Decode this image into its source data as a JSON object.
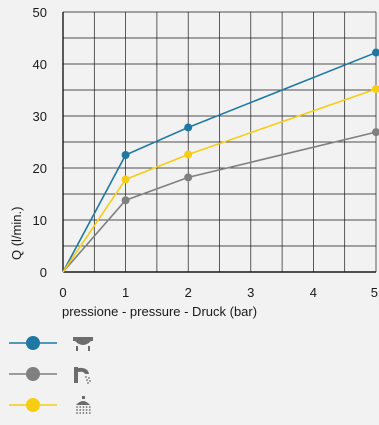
{
  "chart_data": {
    "type": "line",
    "title": "",
    "xlabel": "pressione - pressure - Druck (bar)",
    "ylabel": "Q (l/min.)",
    "x": [
      0,
      1,
      2,
      5
    ],
    "xlim": [
      0,
      5
    ],
    "ylim": [
      0,
      50
    ],
    "xticks": [
      "0",
      "1",
      "2",
      "3",
      "4",
      "5"
    ],
    "yticks": [
      "0",
      "10",
      "20",
      "30",
      "40",
      "50"
    ],
    "grid": true,
    "legend_position": "bottom-left",
    "series": [
      {
        "icon": "bathtub-icon",
        "color": "#1f77a4",
        "values": [
          0,
          22.5,
          27.8,
          42.2
        ]
      },
      {
        "icon": "faucet-icon",
        "color": "#808080",
        "values": [
          0,
          13.8,
          18.2,
          26.9
        ]
      },
      {
        "icon": "shower-head-icon",
        "color": "#f7cd14",
        "values": [
          0,
          17.8,
          22.6,
          35.2
        ]
      }
    ]
  }
}
